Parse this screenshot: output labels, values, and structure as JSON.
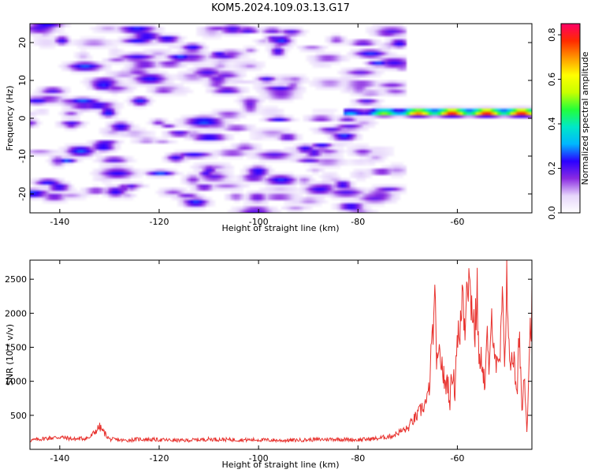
{
  "figure_title": "KOM5.2024.109.03.13.G17",
  "chart_data": [
    {
      "type": "heatmap",
      "xlabel": "Height of straight line (km)",
      "ylabel": "Frequency (Hz)",
      "xlim": [
        -146,
        -45
      ],
      "ylim": [
        -25,
        25
      ],
      "xticks": [
        -140,
        -120,
        -100,
        -80,
        -60
      ],
      "yticks": [
        -20,
        -10,
        0,
        10,
        20
      ],
      "grid": false,
      "colorbar": {
        "label": "Normalized spectral amplitude",
        "range": [
          0,
          0.85
        ],
        "ticks": [
          "0.0",
          "0.2",
          "0.4",
          "0.6",
          "0.8"
        ],
        "colormap": [
          "#ffffff",
          "#e6d5fb",
          "#8a2be2",
          "#2b00ff",
          "#00b7ff",
          "#00e8c8",
          "#23ff3a",
          "#c8ff00",
          "#ffff00",
          "#ff9900",
          "#ff2a00",
          "#ff0066"
        ]
      },
      "features": {
        "noise_region_x": [
          -146,
          -71
        ],
        "noise_level_max": 0.22,
        "carrier_frequency_hz": 1.5,
        "carrier_start_x": -83,
        "carrier_peak_level": 0.85
      }
    },
    {
      "type": "line",
      "xlabel": "Height of straight line (km)",
      "ylabel": "SNR (10 * v/v)",
      "xlim": [
        -146,
        -45
      ],
      "ylim": [
        0,
        2780
      ],
      "xticks": [
        -140,
        -120,
        -100,
        -80,
        -60
      ],
      "yticks": [
        500,
        1000,
        1500,
        2000,
        2500
      ],
      "grid": false,
      "line_color": "#e8332f",
      "series": [
        {
          "x": [
            -146,
            -143,
            -140,
            -137,
            -134,
            -132,
            -130,
            -127,
            -124,
            -120,
            -115,
            -110,
            -105,
            -100,
            -95,
            -90,
            -85,
            -80,
            -76,
            -73,
            -71,
            -70,
            -69,
            -68,
            -67,
            -66,
            -65.5,
            -65,
            -64.5,
            -64,
            -63.5,
            -63,
            -62.5,
            -62,
            -61.5,
            -61,
            -60.5,
            -60,
            -59.5,
            -59,
            -58.5,
            -58,
            -57.5,
            -57,
            -56.5,
            -56,
            -55.5,
            -55,
            -54.5,
            -54,
            -53.5,
            -53,
            -52.5,
            -52,
            -51.5,
            -51,
            -50.5,
            -50,
            -49.5,
            -49,
            -48.5,
            -48,
            -47.5,
            -47,
            -46.5,
            -46,
            -45.5,
            -45
          ],
          "values": [
            130,
            160,
            180,
            150,
            170,
            330,
            150,
            130,
            150,
            140,
            130,
            150,
            140,
            140,
            130,
            140,
            150,
            140,
            160,
            200,
            280,
            300,
            420,
            500,
            620,
            720,
            1050,
            1700,
            2050,
            1100,
            1450,
            1200,
            900,
            1050,
            700,
            1200,
            850,
            1800,
            1500,
            2450,
            1800,
            2780,
            2300,
            2150,
            1700,
            2250,
            1100,
            1400,
            900,
            1600,
            1100,
            2050,
            1500,
            1150,
            1200,
            2150,
            1300,
            2700,
            1100,
            1500,
            1200,
            700,
            1850,
            500,
            1200,
            250,
            1550,
            2100
          ]
        }
      ]
    }
  ]
}
